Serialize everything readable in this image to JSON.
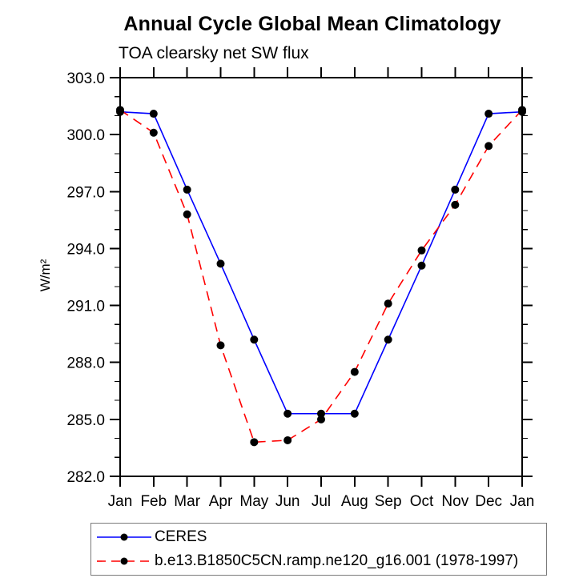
{
  "chart_data": {
    "type": "line",
    "title": "Annual Cycle Global Mean Climatology",
    "subtitle": "TOA clearsky net SW flux",
    "ylabel": "W/m²",
    "xlabel": "",
    "x_tick_labels": [
      "Jan",
      "Feb",
      "Mar",
      "Apr",
      "May",
      "Jun",
      "Jul",
      "Aug",
      "Sep",
      "Oct",
      "Nov",
      "Dec",
      "Jan"
    ],
    "ylim": [
      282.0,
      303.0
    ],
    "y_major_step": 3,
    "y_minor_step": 1,
    "y_tick_labels": [
      "282.0",
      "285.0",
      "288.0",
      "291.0",
      "294.0",
      "297.0",
      "300.0",
      "303.0"
    ],
    "grid": false,
    "legend_position": "bottom",
    "marker": "filled-circle",
    "marker_color": "#000000",
    "axis_color": "#000000",
    "series": [
      {
        "name": "CERES",
        "color": "#0000ff",
        "style": "solid",
        "values": [
          301.2,
          301.1,
          297.1,
          293.2,
          289.2,
          285.3,
          285.3,
          285.3,
          289.2,
          293.1,
          297.1,
          301.1,
          301.2
        ]
      },
      {
        "name": "b.e13.B1850C5CN.ramp.ne120_g16.001 (1978-1997)",
        "color": "#ff0000",
        "style": "dashed",
        "values": [
          301.3,
          300.1,
          295.8,
          288.9,
          283.8,
          283.9,
          285.0,
          287.5,
          291.1,
          293.9,
          296.3,
          299.4,
          301.3
        ]
      }
    ]
  }
}
